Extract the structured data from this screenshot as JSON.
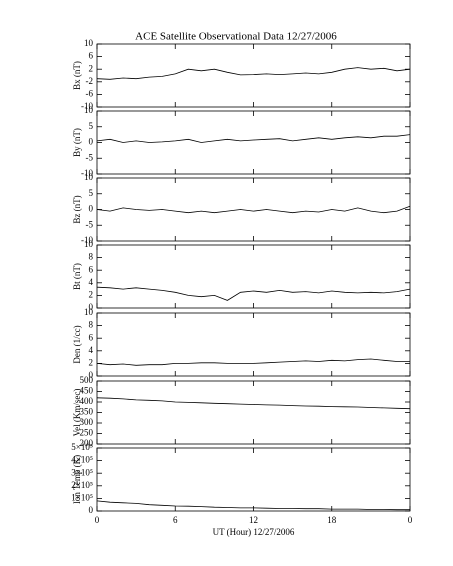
{
  "chart_data": [
    {
      "type": "line",
      "title": "ACE Satellite Observational Data   12/27/2006",
      "ylabel": "Bx (nT)",
      "ylim": [
        -10,
        10
      ],
      "yticks": [
        -10,
        -6,
        -2,
        2,
        6,
        10
      ],
      "values": [
        -1,
        -1.2,
        -0.8,
        -1,
        -0.5,
        -0.3,
        0.5,
        2,
        1.5,
        2,
        1,
        0.2,
        0.3,
        0.5,
        0.3,
        0.5,
        0.8,
        0.5,
        1,
        2,
        2.5,
        2,
        2.3,
        1.5,
        2
      ]
    },
    {
      "type": "line",
      "ylabel": "By (nT)",
      "ylim": [
        -10,
        10
      ],
      "yticks": [
        -10,
        -5,
        0,
        5,
        10
      ],
      "values": [
        0.5,
        1,
        0,
        0.5,
        0,
        0.2,
        0.5,
        1,
        0,
        0.5,
        1,
        0.5,
        0.8,
        1,
        1.2,
        0.5,
        1,
        1.5,
        1,
        1.5,
        1.8,
        1.5,
        2,
        2,
        2.5
      ]
    },
    {
      "type": "line",
      "ylabel": "Bz (nT)",
      "ylim": [
        -10,
        10
      ],
      "yticks": [
        -10,
        -5,
        0,
        5,
        10
      ],
      "values": [
        0,
        -0.5,
        0.5,
        0,
        -0.3,
        0,
        -0.5,
        -1,
        -0.5,
        -1,
        -0.5,
        0,
        -0.5,
        0,
        -0.5,
        -1,
        -0.5,
        -0.8,
        0,
        -0.5,
        0.5,
        -0.5,
        -1,
        -0.5,
        1
      ]
    },
    {
      "type": "line",
      "ylabel": "Bt (nT)",
      "ylim": [
        0,
        10
      ],
      "yticks": [
        0,
        2,
        4,
        6,
        8,
        10
      ],
      "values": [
        3.3,
        3.2,
        3,
        3.2,
        3,
        2.8,
        2.5,
        2,
        1.8,
        2,
        1.2,
        2.5,
        2.7,
        2.5,
        2.8,
        2.5,
        2.6,
        2.4,
        2.7,
        2.5,
        2.4,
        2.5,
        2.4,
        2.6,
        3
      ]
    },
    {
      "type": "line",
      "ylabel": "Den (1/cc)",
      "ylim": [
        0,
        10
      ],
      "yticks": [
        0,
        2,
        4,
        6,
        8,
        10
      ],
      "values": [
        2,
        1.8,
        1.9,
        1.7,
        1.8,
        1.8,
        2,
        2,
        2.1,
        2.1,
        2,
        2,
        2,
        2.1,
        2.2,
        2.3,
        2.4,
        2.3,
        2.5,
        2.4,
        2.6,
        2.7,
        2.5,
        2.3,
        2.3
      ]
    },
    {
      "type": "line",
      "ylabel": "Vel (Km/sec)",
      "ylim": [
        200,
        500
      ],
      "yticks": [
        200,
        250,
        300,
        350,
        400,
        450,
        500
      ],
      "values": [
        420,
        418,
        415,
        410,
        408,
        405,
        400,
        398,
        396,
        394,
        392,
        390,
        388,
        386,
        385,
        383,
        381,
        380,
        378,
        377,
        376,
        374,
        372,
        370,
        368
      ]
    },
    {
      "type": "line",
      "ylabel": "Ion Temp (K)",
      "ylim": [
        0,
        500000
      ],
      "yticks": [
        0,
        {
          "value": 100000,
          "label": "1×10⁵"
        },
        {
          "value": 200000,
          "label": "2×10⁵"
        },
        {
          "value": 300000,
          "label": "3×10⁵"
        },
        {
          "value": 400000,
          "label": "4×10⁵"
        },
        {
          "value": 500000,
          "label": "5×10⁵"
        }
      ],
      "values": [
        80000,
        70000,
        65000,
        60000,
        50000,
        45000,
        40000,
        38000,
        35000,
        30000,
        28000,
        25000,
        25000,
        22000,
        20000,
        20000,
        18000,
        18000,
        15000,
        15000,
        15000,
        12000,
        12000,
        10000,
        10000
      ],
      "xlabel": "UT (Hour)  12/27/2006",
      "x": [
        0,
        1,
        2,
        3,
        4,
        5,
        6,
        7,
        8,
        9,
        10,
        11,
        12,
        13,
        14,
        15,
        16,
        17,
        18,
        19,
        20,
        21,
        22,
        23,
        24
      ],
      "xlim": [
        0,
        24
      ],
      "xticks": [
        0,
        6,
        12,
        18,
        {
          "value": 24,
          "label": "0"
        }
      ]
    }
  ]
}
